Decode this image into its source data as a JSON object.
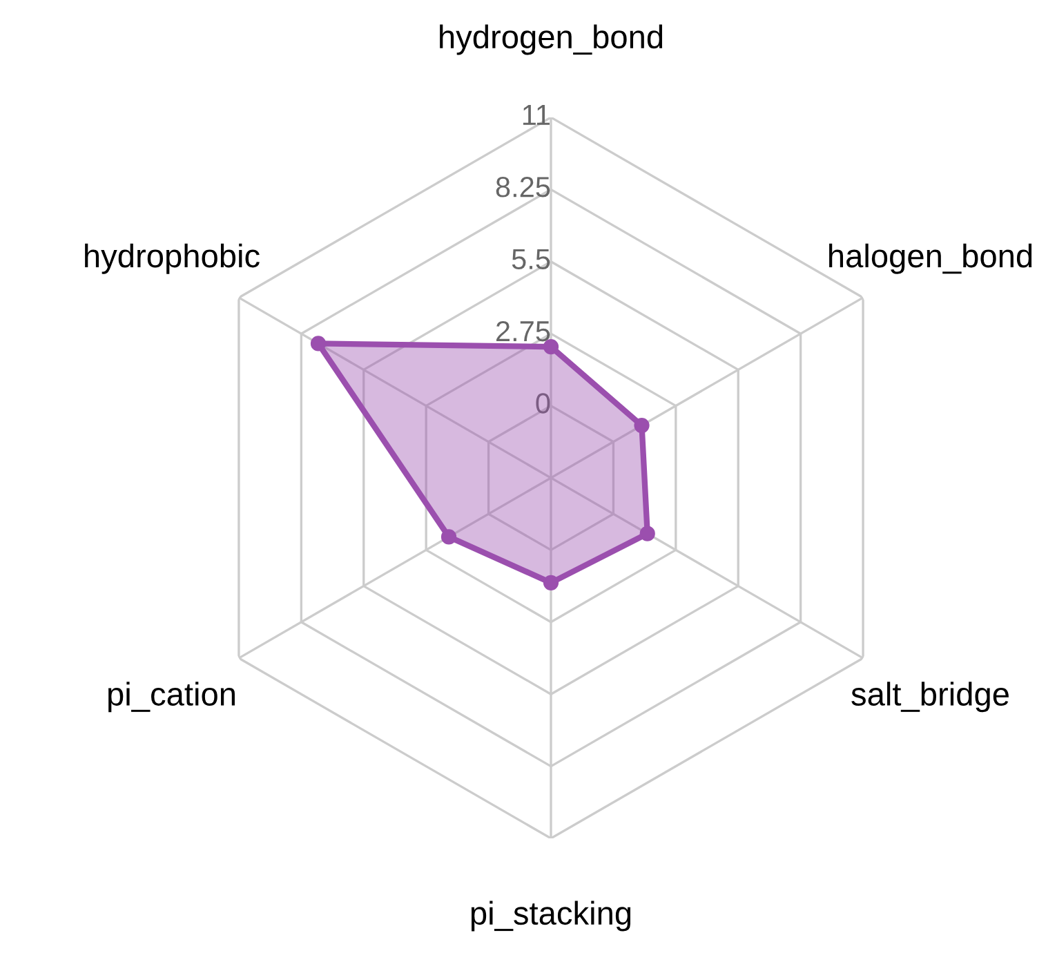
{
  "chart_data": {
    "type": "radar",
    "categories": [
      "hydrogen_bond",
      "halogen_bond",
      "salt_bridge",
      "pi_stacking",
      "pi_cation",
      "hydrophobic"
    ],
    "series": [
      {
        "color": "#9b4fae",
        "values": [
          2.25,
          1.25,
          1.5,
          1.25,
          1.75,
          7.5
        ]
      }
    ],
    "ylim": [
      -2.75,
      11
    ],
    "yticks": [
      0,
      2.75,
      5.5,
      8.25,
      11
    ],
    "grid": true,
    "marker": "circle",
    "line_style": "solid"
  }
}
